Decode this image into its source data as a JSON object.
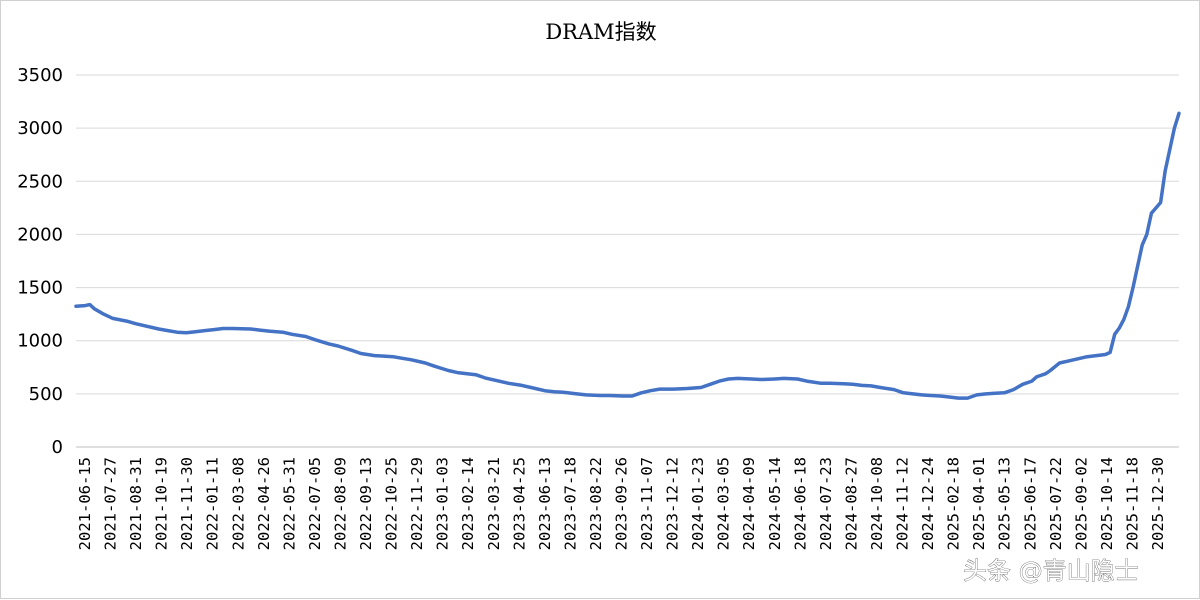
{
  "chart_data": {
    "type": "line",
    "title": "DRAM指数",
    "xlabel": "",
    "ylabel": "",
    "ylim": [
      0,
      3500
    ],
    "yticks": [
      0,
      500,
      1000,
      1500,
      2000,
      2500,
      3000,
      3500
    ],
    "grid": "horizontal",
    "legend": "none",
    "line_color": "#4472C4",
    "x_tick_labels": [
      "2021-06-15",
      "2021-07-27",
      "2021-08-31",
      "2021-10-19",
      "2021-11-30",
      "2022-01-11",
      "2022-03-08",
      "2022-04-26",
      "2022-05-31",
      "2022-07-05",
      "2022-08-09",
      "2022-09-13",
      "2022-10-25",
      "2022-11-29",
      "2023-01-03",
      "2023-02-14",
      "2023-03-21",
      "2023-04-25",
      "2023-06-13",
      "2023-07-18",
      "2023-08-22",
      "2023-09-26",
      "2023-11-07",
      "2023-12-12",
      "2024-01-23",
      "2024-03-05",
      "2024-04-09",
      "2024-05-14",
      "2024-06-18",
      "2024-07-23",
      "2024-08-27",
      "2024-10-08",
      "2024-11-12",
      "2024-12-24",
      "2025-02-18",
      "2025-04-01",
      "2025-05-13",
      "2025-06-17",
      "2025-07-22",
      "2025-09-02",
      "2025-10-14",
      "2025-11-18",
      "2025-12-30"
    ],
    "series": [
      {
        "x": [
          "2021-06-15",
          "2021-06-29",
          "2021-07-06",
          "2021-07-13",
          "2021-07-27",
          "2021-08-10",
          "2021-08-31",
          "2021-09-14",
          "2021-09-28",
          "2021-10-19",
          "2021-11-02",
          "2021-11-16",
          "2021-11-30",
          "2021-12-14",
          "2021-12-28",
          "2022-01-11",
          "2022-01-25",
          "2022-02-08",
          "2022-03-08",
          "2022-03-22",
          "2022-04-05",
          "2022-04-26",
          "2022-05-10",
          "2022-05-31",
          "2022-06-14",
          "2022-07-05",
          "2022-07-19",
          "2022-08-09",
          "2022-08-23",
          "2022-09-13",
          "2022-09-27",
          "2022-10-11",
          "2022-10-25",
          "2022-11-08",
          "2022-11-29",
          "2022-12-13",
          "2023-01-03",
          "2023-01-17",
          "2023-02-14",
          "2023-02-28",
          "2023-03-21",
          "2023-04-04",
          "2023-04-25",
          "2023-05-09",
          "2023-05-30",
          "2023-06-13",
          "2023-06-27",
          "2023-07-18",
          "2023-08-01",
          "2023-08-22",
          "2023-09-05",
          "2023-09-26",
          "2023-10-10",
          "2023-10-24",
          "2023-11-07",
          "2023-11-21",
          "2023-12-12",
          "2024-01-02",
          "2024-01-23",
          "2024-02-06",
          "2024-02-20",
          "2024-03-05",
          "2024-03-19",
          "2024-04-09",
          "2024-04-23",
          "2024-05-14",
          "2024-05-28",
          "2024-06-18",
          "2024-07-02",
          "2024-07-23",
          "2024-08-06",
          "2024-08-27",
          "2024-09-10",
          "2024-09-24",
          "2024-10-08",
          "2024-10-22",
          "2024-11-12",
          "2024-11-26",
          "2024-12-24",
          "2025-01-07",
          "2025-01-21",
          "2025-02-04",
          "2025-02-18",
          "2025-03-04",
          "2025-03-18",
          "2025-04-01",
          "2025-04-15",
          "2025-04-29",
          "2025-05-13",
          "2025-05-27",
          "2025-06-10",
          "2025-06-17",
          "2025-07-01",
          "2025-07-08",
          "2025-07-22",
          "2025-08-05",
          "2025-08-19",
          "2025-09-02",
          "2025-09-16",
          "2025-09-30",
          "2025-10-07",
          "2025-10-14",
          "2025-10-21",
          "2025-10-28",
          "2025-11-04",
          "2025-11-11",
          "2025-11-18",
          "2025-11-25",
          "2025-12-02",
          "2025-12-09",
          "2025-12-16",
          "2025-12-23",
          "2025-12-30",
          "2026-01-13",
          "2026-01-20"
        ],
        "values": [
          1325,
          1330,
          1340,
          1300,
          1250,
          1210,
          1185,
          1160,
          1140,
          1110,
          1095,
          1080,
          1075,
          1085,
          1095,
          1105,
          1115,
          1115,
          1110,
          1100,
          1090,
          1080,
          1060,
          1040,
          1010,
          970,
          950,
          910,
          880,
          860,
          855,
          850,
          835,
          820,
          790,
          760,
          720,
          700,
          680,
          650,
          620,
          600,
          580,
          560,
          530,
          520,
          515,
          500,
          490,
          485,
          485,
          480,
          480,
          510,
          530,
          545,
          545,
          550,
          560,
          590,
          620,
          640,
          645,
          640,
          635,
          640,
          645,
          640,
          620,
          600,
          600,
          595,
          590,
          580,
          575,
          560,
          540,
          510,
          490,
          485,
          480,
          470,
          460,
          460,
          490,
          500,
          505,
          510,
          540,
          590,
          620,
          660,
          690,
          720,
          790,
          810,
          830,
          850,
          860,
          870,
          890,
          1060,
          1120,
          1200,
          1320,
          1500,
          1700,
          1900,
          2000,
          2200,
          2250,
          2300,
          2600,
          3000,
          3140
        ]
      }
    ]
  },
  "watermark": "头条 @青山隐士"
}
